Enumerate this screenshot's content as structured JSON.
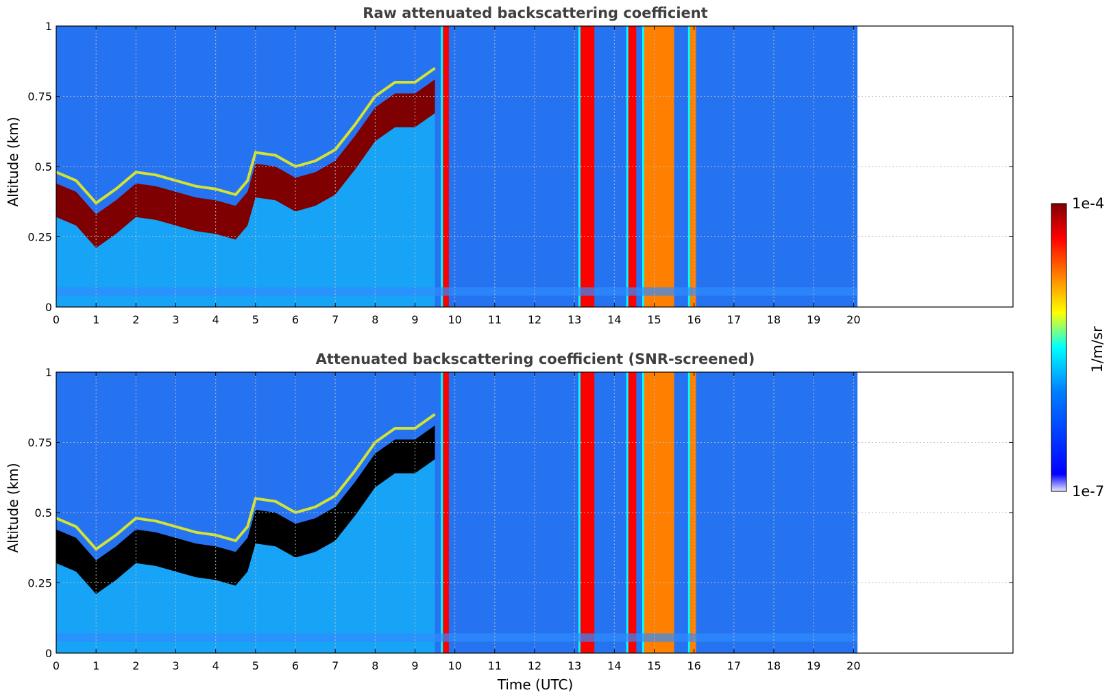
{
  "colormap": [
    "#ffffff",
    "#0000ff",
    "#1a6cf0",
    "#00ffff",
    "#ffff00",
    "#ff8000",
    "#ff0000",
    "#7f0000"
  ],
  "chart_data": [
    {
      "type": "heatmap",
      "title": "Raw attenuated backscattering coefficient",
      "xlabel": "",
      "ylabel": "Altitude (km)",
      "xlim": [
        0,
        24
      ],
      "ylim": [
        0,
        1
      ],
      "xticks": [
        "0",
        "1",
        "2",
        "3",
        "4",
        "5",
        "6",
        "7",
        "8",
        "9",
        "10",
        "11",
        "12",
        "13",
        "14",
        "15",
        "16",
        "17",
        "18",
        "19",
        "20"
      ],
      "yticks": [
        "0",
        "0.25",
        "0.5",
        "0.75",
        "1"
      ],
      "data_end_time": 20.1,
      "grid": true,
      "boundary_layer_top": [
        [
          0,
          0.38
        ],
        [
          0.5,
          0.35
        ],
        [
          1,
          0.27
        ],
        [
          1.5,
          0.32
        ],
        [
          2,
          0.38
        ],
        [
          2.5,
          0.37
        ],
        [
          3,
          0.35
        ],
        [
          3.5,
          0.33
        ],
        [
          4,
          0.32
        ],
        [
          4.5,
          0.3
        ],
        [
          4.8,
          0.35
        ],
        [
          5,
          0.45
        ],
        [
          5.5,
          0.44
        ],
        [
          6,
          0.4
        ],
        [
          6.5,
          0.42
        ],
        [
          7,
          0.46
        ],
        [
          7.5,
          0.55
        ],
        [
          8,
          0.65
        ],
        [
          8.5,
          0.7
        ],
        [
          9,
          0.7
        ],
        [
          9.5,
          0.75
        ]
      ],
      "layer_intensity": "1e-4",
      "columns": [
        {
          "start": 9.7,
          "end": 9.85,
          "level": "high"
        },
        {
          "start": 13.15,
          "end": 13.5,
          "level": "high"
        },
        {
          "start": 14.35,
          "end": 14.55,
          "level": "high"
        },
        {
          "start": 14.75,
          "end": 15.5,
          "level": "medium"
        },
        {
          "start": 15.9,
          "end": 16.05,
          "level": "medium"
        }
      ]
    },
    {
      "type": "heatmap",
      "title": "Attenuated backscattering coefficient (SNR-screened)",
      "xlabel": "Time (UTC)",
      "ylabel": "Altitude (km)",
      "xlim": [
        0,
        24
      ],
      "ylim": [
        0,
        1
      ],
      "xticks": [
        "0",
        "1",
        "2",
        "3",
        "4",
        "5",
        "6",
        "7",
        "8",
        "9",
        "10",
        "11",
        "12",
        "13",
        "14",
        "15",
        "16",
        "17",
        "18",
        "19",
        "20"
      ],
      "yticks": [
        "0",
        "0.25",
        "0.5",
        "0.75",
        "1"
      ],
      "data_end_time": 20.1,
      "grid": true,
      "boundary_layer_top": [
        [
          0,
          0.38
        ],
        [
          0.5,
          0.35
        ],
        [
          1,
          0.27
        ],
        [
          1.5,
          0.32
        ],
        [
          2,
          0.38
        ],
        [
          2.5,
          0.37
        ],
        [
          3,
          0.35
        ],
        [
          3.5,
          0.33
        ],
        [
          4,
          0.32
        ],
        [
          4.5,
          0.3
        ],
        [
          4.8,
          0.35
        ],
        [
          5,
          0.45
        ],
        [
          5.5,
          0.44
        ],
        [
          6,
          0.4
        ],
        [
          6.5,
          0.42
        ],
        [
          7,
          0.46
        ],
        [
          7.5,
          0.55
        ],
        [
          8,
          0.65
        ],
        [
          8.5,
          0.7
        ],
        [
          9,
          0.7
        ],
        [
          9.5,
          0.75
        ]
      ],
      "layer_intensity": "saturated",
      "columns": [
        {
          "start": 9.7,
          "end": 9.85,
          "level": "high"
        },
        {
          "start": 13.15,
          "end": 13.5,
          "level": "high"
        },
        {
          "start": 14.35,
          "end": 14.55,
          "level": "high"
        },
        {
          "start": 14.75,
          "end": 15.5,
          "level": "medium"
        },
        {
          "start": 15.9,
          "end": 16.05,
          "level": "medium"
        }
      ]
    }
  ],
  "colorbar": {
    "max_label": "1e-4",
    "min_label": "1e-7",
    "unit_label": "1/m/sr",
    "scale": "log"
  }
}
